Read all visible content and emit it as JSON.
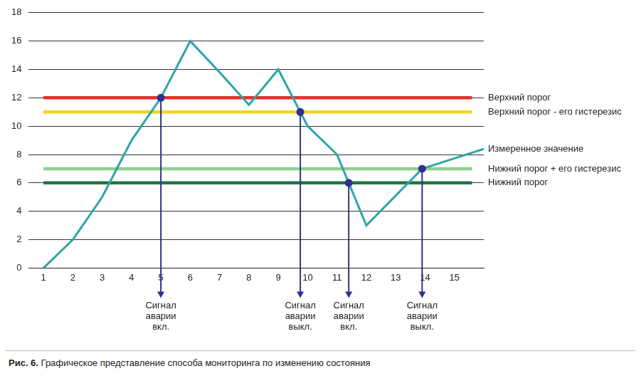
{
  "chart_data": {
    "type": "line",
    "caption": "Рис. 6. Графическое представление способа мониторинга по изменению состояния",
    "grid": "y",
    "xlim": [
      0.5,
      16
    ],
    "xticks": [
      1,
      2,
      3,
      4,
      5,
      6,
      7,
      8,
      9,
      10,
      11,
      12,
      13,
      14,
      15
    ],
    "ylim": [
      0,
      18
    ],
    "yticks": [
      0,
      2,
      4,
      6,
      8,
      10,
      12,
      14,
      16,
      18
    ],
    "series": [
      {
        "name": "Измеренное значение",
        "color": "#2ea4a6",
        "x": [
          1,
          2,
          3,
          4,
          5,
          6,
          7,
          8,
          9,
          10,
          11,
          12,
          13.9,
          16
        ],
        "values": [
          0,
          2,
          5,
          9,
          12,
          16,
          13.8,
          11.5,
          14,
          10,
          8,
          3,
          7,
          8.4
        ]
      },
      {
        "name": "Верхний порог",
        "color": "#e63027",
        "x": [
          1,
          15.6
        ],
        "values": [
          12,
          12
        ]
      },
      {
        "name": "Верхний порог - его гистерезис",
        "color": "#ecd624",
        "x": [
          1,
          15.6
        ],
        "values": [
          11,
          11
        ]
      },
      {
        "name": "Нижний порог + его гистерезис",
        "color": "#8fcf8c",
        "x": [
          1,
          15.6
        ],
        "values": [
          7,
          7
        ]
      },
      {
        "name": "Нижний порог",
        "color": "#1f7a3e",
        "x": [
          1,
          15.6
        ],
        "values": [
          6,
          6
        ]
      }
    ],
    "events": [
      {
        "x": 5,
        "y": 12,
        "label": "Сигнал аварии вкл."
      },
      {
        "x": 9.75,
        "y": 11,
        "label": "Сигнал аварии выкл."
      },
      {
        "x": 11.4,
        "y": 6,
        "label": "Сигнал аварии вкл."
      },
      {
        "x": 13.9,
        "y": 7,
        "label": "Сигнал аварии выкл."
      }
    ]
  }
}
